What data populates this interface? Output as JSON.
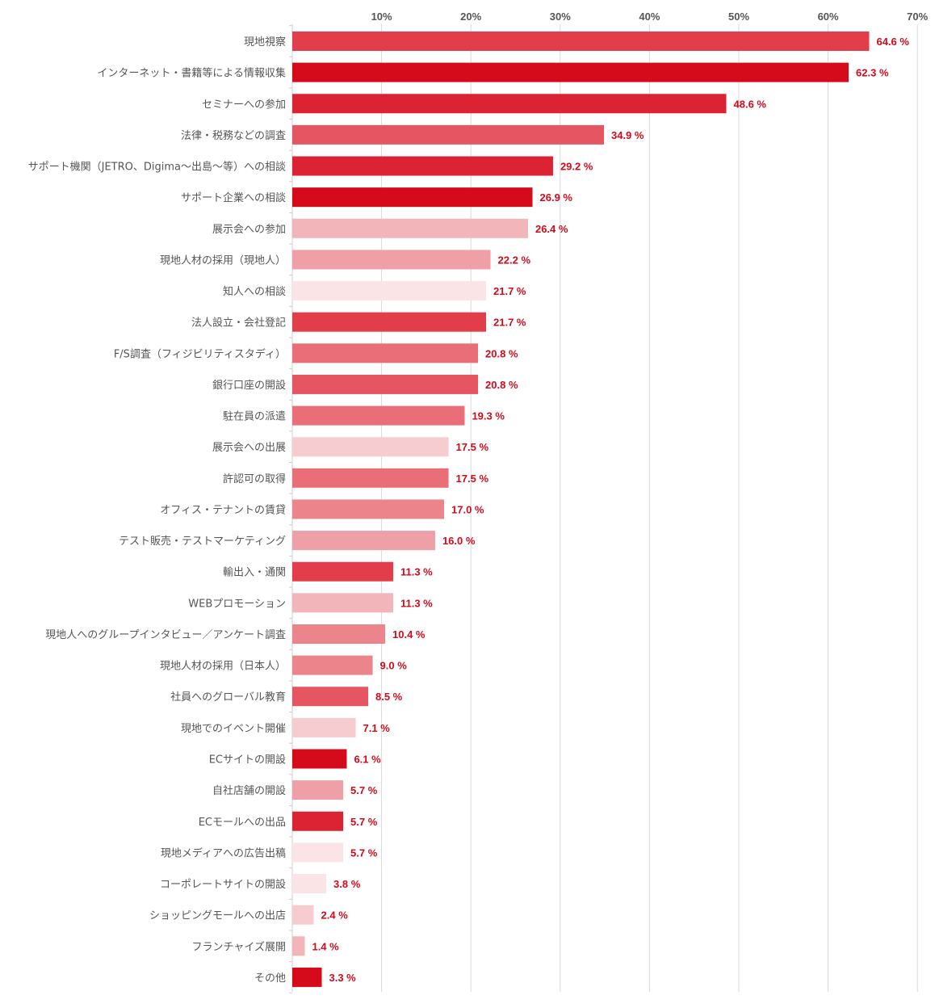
{
  "chart_data": {
    "type": "bar",
    "orientation": "horizontal",
    "title": "",
    "xlabel": "",
    "ylabel": "",
    "xlim": [
      0,
      70
    ],
    "x_ticks": [
      10,
      20,
      30,
      40,
      50,
      60,
      70
    ],
    "x_tick_labels": [
      "10%",
      "20%",
      "30%",
      "40%",
      "50%",
      "60%",
      "70%"
    ],
    "tick_position": "top",
    "grid": true,
    "legend": "none",
    "value_suffix": " %",
    "categories": [
      "現地視察",
      "インターネット・書籍等による情報収集",
      "セミナーへの参加",
      "法律・税務などの調査",
      "サポート機関（JETRO、Digima〜出島〜等）への相談",
      "サポート企業への相談",
      "展示会への参加",
      "現地人材の採用（現地人）",
      "知人への相談",
      "法人設立・会社登記",
      "F/S調査（フィジビリティスタディ）",
      "銀行口座の開設",
      "駐在員の派遣",
      "展示会への出展",
      "許認可の取得",
      "オフィス・テナントの賃貸",
      "テスト販売・テストマーケティング",
      "輸出入・通関",
      "WEBプロモーション",
      "現地人へのグループインタビュー／アンケート調査",
      "現地人材の採用（日本人）",
      "社員へのグローバル教育",
      "現地でのイベント開催",
      "ECサイトの開設",
      "自社店舗の開設",
      "ECモールへの出品",
      "現地メディアへの広告出稿",
      "コーポレートサイトの開設",
      "ショッピングモールへの出店",
      "フランチャイズ展開",
      "その他"
    ],
    "values": [
      64.6,
      62.3,
      48.6,
      34.9,
      29.2,
      26.9,
      26.4,
      22.2,
      21.7,
      21.7,
      20.8,
      20.8,
      19.3,
      17.5,
      17.5,
      17.0,
      16.0,
      11.3,
      11.3,
      10.4,
      9.0,
      8.5,
      7.1,
      6.1,
      5.7,
      5.7,
      5.7,
      3.8,
      2.4,
      1.4,
      3.3
    ],
    "value_labels": [
      "64.6 %",
      "62.3 %",
      "48.6 %",
      "34.9 %",
      "29.2 %",
      "26.9 %",
      "26.4 %",
      "22.2 %",
      "21.7 %",
      "21.7 %",
      "20.8 %",
      "20.8 %",
      "19.3 %",
      "17.5 %",
      "17.5 %",
      "17.0 %",
      "16.0 %",
      "11.3 %",
      "11.3 %",
      "10.4 %",
      "9.0 %",
      "8.5 %",
      "7.1 %",
      "6.1 %",
      "5.7 %",
      "5.7 %",
      "5.7 %",
      "3.8 %",
      "2.4 %",
      "1.4 %",
      "3.3 %"
    ],
    "bar_colors": [
      "#e23d4a",
      "#d50b1b",
      "#dc2333",
      "#e65662",
      "#dc2333",
      "#d50b1b",
      "#f2b5b9",
      "#efa0a6",
      "#fbe4e6",
      "#e23d4a",
      "#e96e78",
      "#e65662",
      "#e96e78",
      "#f7ccd0",
      "#e96e78",
      "#ec848c",
      "#efa0a6",
      "#e23d4a",
      "#f2b5b9",
      "#ec848c",
      "#ec848c",
      "#e65662",
      "#f7ccd0",
      "#d50b1b",
      "#efa0a6",
      "#dc2333",
      "#fbe4e6",
      "#fbe4e6",
      "#f7ccd0",
      "#f2b5b9",
      "#d50b1b"
    ],
    "label_color": "#d20a1a"
  }
}
